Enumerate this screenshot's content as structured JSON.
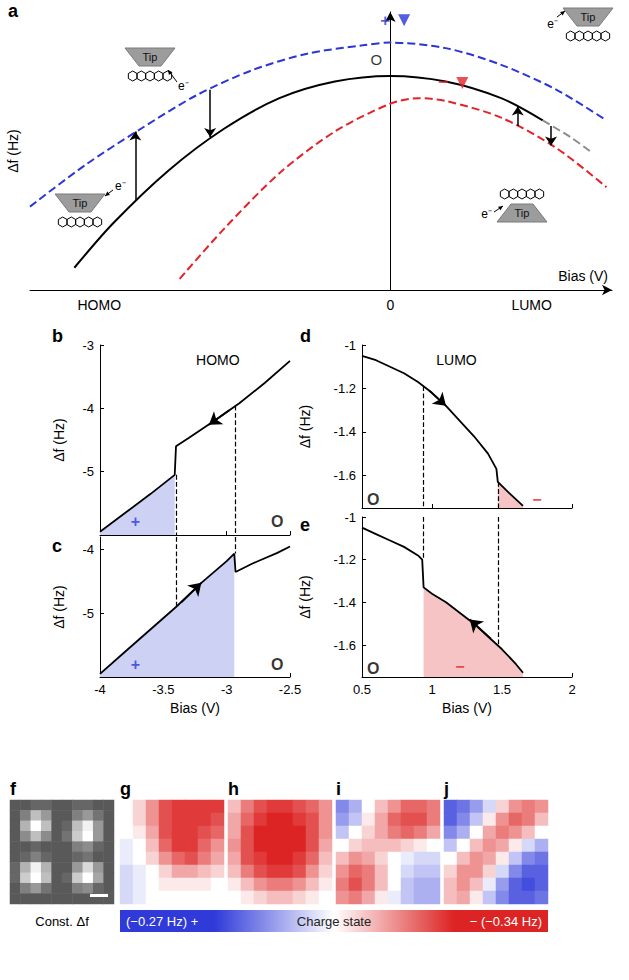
{
  "chart_data": [
    {
      "panel": "a",
      "type": "line",
      "xlabel": "Bias (V)",
      "ylabel": "Δf (Hz)",
      "xlim": [
        -1.3,
        0.8
      ],
      "ylim": [
        0,
        1
      ],
      "xticks": [
        {
          "value": -1.05,
          "label": "HOMO"
        },
        0,
        {
          "value": 0.51,
          "label": "LUMO"
        }
      ],
      "tick_labels": "x",
      "series": [
        {
          "color": "#000000",
          "line_style": "solid",
          "x": [
            -1.14,
            -1.0,
            -0.8,
            -0.6,
            -0.4,
            -0.2,
            0,
            0.2,
            0.4,
            0.55
          ],
          "values": [
            0.08,
            0.24,
            0.43,
            0.58,
            0.69,
            0.75,
            0.77,
            0.75,
            0.69,
            0.61
          ]
        },
        {
          "color": "#8c8c8c",
          "line_style": "dashed",
          "x": [
            0.55,
            0.65,
            0.72
          ],
          "values": [
            0.61,
            0.55,
            0.5
          ]
        },
        {
          "color": "#2b35d8",
          "line_style": "dashed",
          "x": [
            -1.3,
            -1.1,
            -0.9,
            -0.7,
            -0.5,
            -0.3,
            -0.1,
            0,
            0.2,
            0.4,
            0.6,
            0.78
          ],
          "values": [
            0.3,
            0.45,
            0.58,
            0.7,
            0.79,
            0.85,
            0.88,
            0.89,
            0.87,
            0.81,
            0.72,
            0.61
          ]
        },
        {
          "color": "#e3232a",
          "line_style": "dashed",
          "x": [
            -0.76,
            -0.6,
            -0.4,
            -0.2,
            0,
            0.1,
            0.2,
            0.4,
            0.6,
            0.78
          ],
          "values": [
            0.04,
            0.22,
            0.42,
            0.57,
            0.67,
            0.69,
            0.68,
            0.62,
            0.51,
            0.37
          ]
        }
      ],
      "state_marks": [
        {
          "label": "+",
          "x": 0.05,
          "y": 0.97,
          "color": "#2b35d8",
          "marker": "triangle"
        },
        {
          "label": "−",
          "x": 0.26,
          "y": 0.745,
          "color": "#e3232a",
          "marker": "triangle"
        }
      ],
      "annotations": [
        {
          "text": "O",
          "x": -0.05,
          "y": 0.83,
          "color": "#000000"
        }
      ],
      "transitions": [
        {
          "x": -0.92,
          "from": 0.32,
          "to": 0.57
        },
        {
          "x": -0.65,
          "from": 0.72,
          "to": 0.55
        },
        {
          "x": 0.46,
          "from": 0.59,
          "to": 0.66
        },
        {
          "x": 0.58,
          "from": 0.59,
          "to": 0.52
        }
      ],
      "insets": {
        "tip": "Tip",
        "electron": "e⁻"
      }
    },
    {
      "panel": "b",
      "type": "line",
      "title": "HOMO",
      "ylabel": "Δf (Hz)",
      "color": "#000000",
      "x": [
        -4,
        -3.8,
        -3.6,
        -3.41,
        -3.4,
        -3.3,
        -3.1,
        -2.9,
        -2.7,
        -2.5
      ],
      "values": [
        -5.95,
        -5.65,
        -5.35,
        -5.05,
        -4.6,
        -4.47,
        -4.2,
        -3.92,
        -3.6,
        -3.25
      ],
      "xlim": [
        -4,
        -2.5
      ],
      "ylim": [
        -6,
        -3
      ],
      "xticks": [
        -4,
        -3.5,
        -3,
        -2.5
      ],
      "yticks": [
        -5,
        -4,
        -3
      ],
      "tick_labels": "y",
      "shaded": {
        "from": -4,
        "to": -3.41,
        "color": "#cdd1f4"
      },
      "states": [
        {
          "text": "+",
          "x": -3.72,
          "y": -5.78,
          "color": "#2b35d8"
        },
        {
          "text": "O",
          "x": -2.6,
          "y": -5.78,
          "color": "#000000"
        }
      ],
      "arrow": {
        "from": [
          -2.98,
          -4.03
        ],
        "to": [
          -3.14,
          -4.26
        ]
      },
      "dashed_lines": [
        {
          "x": -3.4,
          "from": -5.05,
          "to": -6
        },
        {
          "x": -2.93,
          "from": -3.96,
          "to": -6
        }
      ]
    },
    {
      "panel": "c",
      "type": "line",
      "ylabel": "Δf (Hz)",
      "xlabel": "Bias (V)",
      "color": "#000000",
      "x": [
        -4,
        -3.8,
        -3.6,
        -3.4,
        -3.2,
        -3,
        -2.94,
        -2.93,
        -2.8,
        -2.6,
        -2.5
      ],
      "values": [
        -5.95,
        -5.6,
        -5.25,
        -4.9,
        -4.52,
        -4.18,
        -4.06,
        -4.35,
        -4.22,
        -4.05,
        -3.95
      ],
      "xlim": [
        -4,
        -2.5
      ],
      "ylim": [
        -6,
        -3.8
      ],
      "xticks": [
        -4,
        -3.5,
        -3,
        -2.5
      ],
      "yticks": [
        -5,
        -4
      ],
      "shaded": {
        "from": -4,
        "to": -2.94,
        "color": "#cdd1f4"
      },
      "states": [
        {
          "text": "+",
          "x": -3.72,
          "y": -5.8,
          "color": "#2b35d8"
        },
        {
          "text": "O",
          "x": -2.6,
          "y": -5.8,
          "color": "#000000"
        }
      ],
      "arrow": {
        "from": [
          -3.36,
          -4.83
        ],
        "to": [
          -3.2,
          -4.52
        ]
      },
      "dashed_lines": [
        {
          "x": -3.4,
          "from": -3.8,
          "to": -4.9
        },
        {
          "x": -2.93,
          "from": -3.8,
          "to": -4.06
        }
      ]
    },
    {
      "panel": "d",
      "type": "line",
      "title": "LUMO",
      "ylabel": "Δf (Hz)",
      "color": "#000000",
      "x": [
        0.5,
        0.6,
        0.7,
        0.8,
        0.9,
        1,
        1.1,
        1.2,
        1.3,
        1.4,
        1.46,
        1.47,
        1.55,
        1.65
      ],
      "values": [
        -1.05,
        -1.07,
        -1.1,
        -1.13,
        -1.17,
        -1.22,
        -1.28,
        -1.35,
        -1.42,
        -1.5,
        -1.57,
        -1.63,
        -1.68,
        -1.74
      ],
      "xlim": [
        0.5,
        2
      ],
      "ylim": [
        -1.75,
        -1
      ],
      "xticks": [
        0.5,
        1,
        1.5,
        2
      ],
      "yticks": [
        -1.6,
        -1.4,
        -1.2,
        -1
      ],
      "tick_labels": "y",
      "shaded": {
        "from": 1.47,
        "to": 1.65,
        "color": "#f6c4c4"
      },
      "states": [
        {
          "text": "O",
          "x": 0.58,
          "y": -1.71,
          "color": "#000000"
        },
        {
          "text": "−",
          "x": 1.75,
          "y": -1.71,
          "color": "#e3232a"
        }
      ],
      "arrow": {
        "from": [
          0.98,
          -1.21
        ],
        "to": [
          1.1,
          -1.28
        ]
      },
      "dashed_lines": [
        {
          "x": 0.94,
          "from": -1.19,
          "to": -1.75
        },
        {
          "x": 1.47,
          "from": -1.63,
          "to": -1.75
        }
      ]
    },
    {
      "panel": "e",
      "type": "line",
      "ylabel": "Δf (Hz)",
      "xlabel": "Bias (V)",
      "color": "#000000",
      "x": [
        0.5,
        0.6,
        0.7,
        0.8,
        0.9,
        0.93,
        0.94,
        1,
        1.1,
        1.2,
        1.3,
        1.4,
        1.5,
        1.6,
        1.65
      ],
      "values": [
        -1.05,
        -1.08,
        -1.11,
        -1.14,
        -1.18,
        -1.2,
        -1.33,
        -1.36,
        -1.4,
        -1.45,
        -1.5,
        -1.56,
        -1.62,
        -1.69,
        -1.73
      ],
      "xlim": [
        0.5,
        2
      ],
      "ylim": [
        -1.75,
        -1
      ],
      "xticks": [
        0.5,
        1,
        1.5,
        2
      ],
      "yticks": [
        -1.6,
        -1.4,
        -1.2,
        -1
      ],
      "shaded": {
        "from": 0.94,
        "to": 1.65,
        "color": "#f6c4c4"
      },
      "states": [
        {
          "text": "O",
          "x": 0.58,
          "y": -1.71,
          "color": "#000000"
        },
        {
          "text": "−",
          "x": 1.2,
          "y": -1.7,
          "color": "#e3232a"
        }
      ],
      "arrow": {
        "from": [
          1.42,
          -1.57
        ],
        "to": [
          1.27,
          -1.48
        ]
      },
      "dashed_lines": [
        {
          "x": 0.94,
          "from": -1,
          "to": -1.2
        },
        {
          "x": 1.47,
          "from": -1,
          "to": -1.6
        }
      ]
    },
    {
      "panel": "f",
      "type": "heatmap",
      "caption": "Const. Δf",
      "tick_labels": false,
      "colors": [
        "#000000",
        "#ffffff"
      ],
      "color_range": [
        0,
        1
      ],
      "cells": [
        [
          0.35,
          0.35,
          0.4,
          0.4,
          0.35,
          0.35,
          0.4,
          0.4,
          0.35,
          0.35
        ],
        [
          0.35,
          0.5,
          0.75,
          0.6,
          0.35,
          0.35,
          0.5,
          0.6,
          0.45,
          0.35
        ],
        [
          0.35,
          0.7,
          1,
          0.75,
          0.35,
          0.4,
          0.75,
          0.95,
          0.6,
          0.35
        ],
        [
          0.35,
          0.55,
          0.75,
          0.55,
          0.35,
          0.45,
          0.8,
          1,
          0.6,
          0.35
        ],
        [
          0.35,
          0.35,
          0.4,
          0.35,
          0.35,
          0.35,
          0.5,
          0.55,
          0.4,
          0.35
        ],
        [
          0.35,
          0.4,
          0.5,
          0.4,
          0.35,
          0.35,
          0.4,
          0.45,
          0.35,
          0.35
        ],
        [
          0.4,
          0.7,
          0.95,
          0.7,
          0.35,
          0.35,
          0.6,
          0.85,
          0.6,
          0.35
        ],
        [
          0.4,
          0.8,
          1,
          0.75,
          0.35,
          0.4,
          0.8,
          1,
          0.65,
          0.35
        ],
        [
          0.35,
          0.5,
          0.6,
          0.45,
          0.35,
          0.35,
          0.5,
          0.55,
          0.4,
          0.35
        ],
        [
          0.35,
          0.35,
          0.35,
          0.35,
          0.35,
          0.35,
          0.35,
          0.35,
          0.35,
          0.35
        ]
      ]
    },
    {
      "panels": [
        "g",
        "h",
        "i",
        "j"
      ],
      "type": "heatmap",
      "tick_labels": false,
      "color_bar": {
        "range": [
          -1,
          1
        ],
        "colors": [
          "#2f3ad9",
          "#ffffff",
          "#dc2424"
        ],
        "labels": [
          "(−0.27 Hz) +",
          "Charge state",
          "− (−0.34 Hz)"
        ]
      },
      "maps": [
        [
          [
            0,
            0.2,
            0.5,
            0.8,
            0.9,
            0.9,
            0.9,
            0.9
          ],
          [
            0,
            0.2,
            0.5,
            0.8,
            0.9,
            0.9,
            0.9,
            0.8
          ],
          [
            0,
            0.1,
            0.4,
            0.8,
            0.9,
            0.9,
            0.8,
            0.7
          ],
          [
            -0.1,
            0,
            0.3,
            0.7,
            0.9,
            0.9,
            0.7,
            0.5
          ],
          [
            -0.1,
            0,
            0.2,
            0.5,
            0.7,
            0.8,
            0.6,
            0.4
          ],
          [
            -0.2,
            -0.1,
            0,
            0.2,
            0.4,
            0.4,
            0.3,
            0.2
          ],
          [
            -0.2,
            -0.1,
            0,
            0.1,
            0.1,
            0.1,
            0.1,
            0
          ],
          [
            -0.2,
            -0.1,
            0,
            0,
            0,
            0,
            0,
            0
          ]
        ],
        [
          [
            0.3,
            0.6,
            0.8,
            0.9,
            0.9,
            0.8,
            0.7,
            0.5
          ],
          [
            0.4,
            0.7,
            0.9,
            1,
            1,
            0.9,
            0.8,
            0.5
          ],
          [
            0.4,
            0.8,
            1,
            1,
            1,
            1,
            0.8,
            0.5
          ],
          [
            0.5,
            0.8,
            1,
            1,
            1,
            1,
            0.8,
            0.4
          ],
          [
            0.4,
            0.8,
            0.9,
            1,
            1,
            0.9,
            0.7,
            0.3
          ],
          [
            0.3,
            0.6,
            0.8,
            0.9,
            0.9,
            0.8,
            0.5,
            0.2
          ],
          [
            0.1,
            0.3,
            0.5,
            0.6,
            0.6,
            0.5,
            0.3,
            0.1
          ],
          [
            0,
            0.1,
            0.2,
            0.3,
            0.3,
            0.2,
            0.1,
            0
          ]
        ],
        [
          [
            -0.6,
            -0.4,
            0,
            0.3,
            0.5,
            0.7,
            0.7,
            0.6
          ],
          [
            -0.5,
            -0.3,
            0.1,
            0.4,
            0.7,
            0.8,
            0.8,
            0.6
          ],
          [
            -0.3,
            0,
            0.2,
            0.4,
            0.6,
            0.7,
            0.6,
            0.4
          ],
          [
            0,
            0.2,
            0.3,
            0.3,
            0.3,
            0.2,
            0.1,
            0
          ],
          [
            0.3,
            0.5,
            0.4,
            0.2,
            0,
            -0.1,
            -0.2,
            -0.2
          ],
          [
            0.5,
            0.7,
            0.6,
            0.3,
            0,
            -0.2,
            -0.3,
            -0.3
          ],
          [
            0.6,
            0.8,
            0.6,
            0.3,
            0,
            -0.3,
            -0.4,
            -0.4
          ],
          [
            0.5,
            0.6,
            0.4,
            0.1,
            -0.1,
            -0.3,
            -0.4,
            -0.4
          ]
        ],
        [
          [
            -0.8,
            -0.7,
            -0.5,
            -0.2,
            0.2,
            0.5,
            0.6,
            0.5
          ],
          [
            -0.8,
            -0.6,
            -0.3,
            0.1,
            0.5,
            0.7,
            0.6,
            0.3
          ],
          [
            -0.6,
            -0.4,
            0,
            0.4,
            0.6,
            0.5,
            0.3,
            0
          ],
          [
            -0.3,
            0,
            0.3,
            0.5,
            0.4,
            0.1,
            -0.2,
            -0.4
          ],
          [
            0,
            0.3,
            0.5,
            0.4,
            0.1,
            -0.3,
            -0.6,
            -0.7
          ],
          [
            0.2,
            0.5,
            0.5,
            0.2,
            -0.2,
            -0.6,
            -0.8,
            -0.8
          ],
          [
            0.3,
            0.5,
            0.3,
            -0.1,
            -0.5,
            -0.8,
            -0.9,
            -0.8
          ],
          [
            0.3,
            0.4,
            0.1,
            -0.3,
            -0.6,
            -0.8,
            -0.8,
            -0.7
          ]
        ]
      ]
    }
  ]
}
